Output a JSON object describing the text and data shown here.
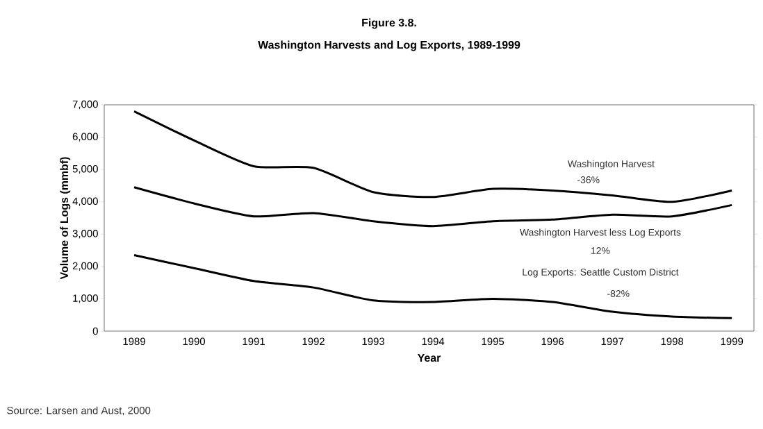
{
  "chart_data": {
    "type": "line",
    "title": "Figure 3.8.",
    "subtitle": "Washington Harvests and Log Exports, 1989-1999",
    "xlabel": "Year",
    "ylabel": "Volume of Logs (mmbf)",
    "categories": [
      "1989",
      "1990",
      "1991",
      "1992",
      "1993",
      "1994",
      "1995",
      "1996",
      "1997",
      "1998",
      "1999"
    ],
    "series": [
      {
        "name": "Washington Harvest",
        "color": "#000000",
        "values": [
          6800,
          5900,
          5100,
          5050,
          4300,
          4150,
          4400,
          4350,
          4200,
          4000,
          4350
        ]
      },
      {
        "name": "Washington Harvest less Log Exports",
        "color": "#000000",
        "values": [
          4450,
          3950,
          3550,
          3650,
          3400,
          3250,
          3400,
          3450,
          3600,
          3550,
          3900
        ]
      },
      {
        "name": "Log Exports: Seattle Custom District",
        "color": "#000000",
        "values": [
          2350,
          1950,
          1550,
          1350,
          950,
          900,
          1000,
          900,
          600,
          450,
          400
        ]
      }
    ],
    "annotations": [
      "-36%",
      "12%",
      "-82%",
      "Source: Larsen and Aust, 2000"
    ],
    "ylim": [
      0,
      7000
    ],
    "yticks": [
      {
        "value": 0,
        "label": "0"
      },
      {
        "value": 1000,
        "label": "1,000"
      },
      {
        "value": 2000,
        "label": "2,000"
      },
      {
        "value": 3000,
        "label": "3,000"
      },
      {
        "value": 4000,
        "label": "4,000"
      },
      {
        "value": 5000,
        "label": "5,000"
      },
      {
        "value": 6000,
        "label": "6,000"
      },
      {
        "value": 7000,
        "label": "7,000"
      }
    ],
    "grid": false,
    "legend": false,
    "marker": "none",
    "line_style": "solid"
  }
}
